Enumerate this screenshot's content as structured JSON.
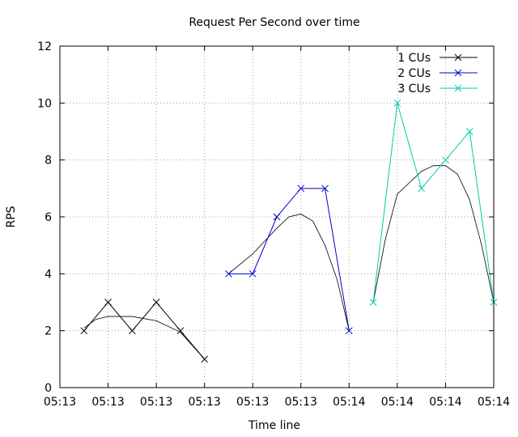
{
  "chart_data": {
    "type": "line",
    "title": "Request Per Second over time",
    "xlabel": "Time line",
    "ylabel": "RPS",
    "x_tick_labels": [
      "05:13",
      "05:13",
      "05:13",
      "05:13",
      "05:13",
      "05:13",
      "05:14",
      "05:14",
      "05:14",
      "05:14"
    ],
    "x_tick_positions": [
      0,
      1,
      2,
      3,
      4,
      5,
      6,
      7,
      8,
      9
    ],
    "xlim": [
      0,
      9
    ],
    "ylim": [
      0,
      12
    ],
    "y_ticks": [
      0,
      2,
      4,
      6,
      8,
      10,
      12
    ],
    "grid": true,
    "legend_position": "top-right",
    "series": [
      {
        "name": "1 CUs",
        "color": "#000000",
        "x": [
          0.5,
          1,
          1.5,
          2,
          2.5,
          3
        ],
        "y": [
          2,
          3,
          2,
          3,
          2,
          1
        ]
      },
      {
        "name": "2 CUs",
        "color": "#0000cc",
        "x": [
          3.5,
          4,
          4.5,
          5,
          5.5,
          6
        ],
        "y": [
          4,
          4,
          6,
          7,
          7,
          2
        ]
      },
      {
        "name": "3 CUs",
        "color": "#00ccaa",
        "x": [
          6.5,
          7,
          7.5,
          8,
          8.5,
          9
        ],
        "y": [
          3,
          10,
          7,
          8,
          9,
          3
        ]
      }
    ],
    "trend_lines": [
      {
        "color": "#000000",
        "x": [
          0.5,
          0.75,
          1,
          1.5,
          2,
          2.5,
          3
        ],
        "y": [
          2.1,
          2.4,
          2.5,
          2.5,
          2.35,
          1.95,
          1.0
        ]
      },
      {
        "color": "#000000",
        "x": [
          3.5,
          4,
          4.5,
          4.75,
          5,
          5.25,
          5.5,
          5.75,
          6
        ],
        "y": [
          4.0,
          4.7,
          5.6,
          6.0,
          6.1,
          5.85,
          5.0,
          3.8,
          2.0
        ]
      },
      {
        "color": "#000000",
        "x": [
          6.5,
          6.75,
          7,
          7.5,
          7.75,
          8,
          8.25,
          8.5,
          8.75,
          9
        ],
        "y": [
          3.0,
          5.2,
          6.8,
          7.6,
          7.8,
          7.8,
          7.5,
          6.6,
          5.0,
          3.0
        ]
      }
    ]
  }
}
